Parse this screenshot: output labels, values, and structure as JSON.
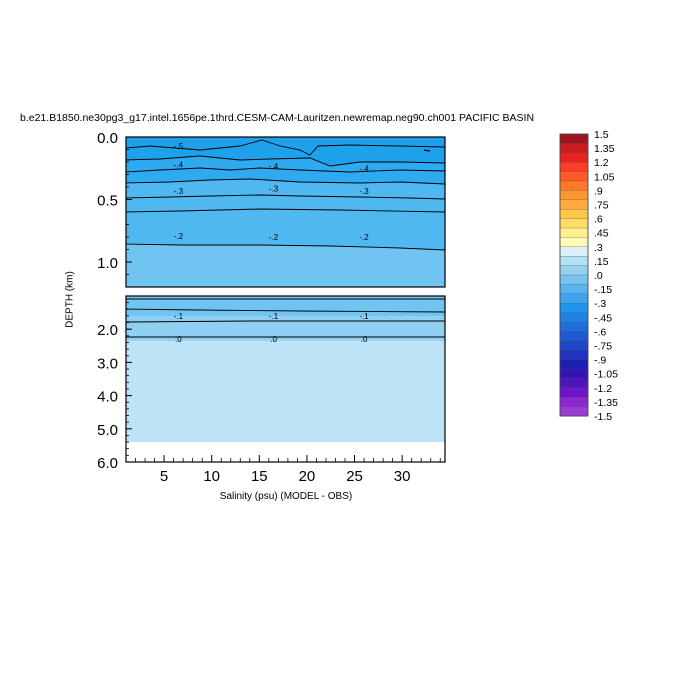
{
  "chart_data": {
    "type": "heatmap",
    "title": "b.e21.B1850.ne30pg3_g17.intel.1656pe.1thrd.CESM-CAM-Lauritzen.newremap.neg90.ch001 PACIFIC BASIN",
    "xlabel": "Salinity (psu) (MODEL - OBS)",
    "ylabel": "DEPTH (km)",
    "x_ticks": [
      "5",
      "10",
      "15",
      "20",
      "25",
      "30"
    ],
    "xlim": [
      1,
      34.5
    ],
    "top_panel": {
      "ylim": [
        0,
        1.2
      ],
      "y_ticks": [
        "0.0",
        "0.5",
        "1.0"
      ],
      "contour_labels": [
        {
          "x": 6.5,
          "y": 0.07,
          "text": "-.5"
        },
        {
          "x": 6.5,
          "y": 0.22,
          "text": "-.4"
        },
        {
          "x": 16.5,
          "y": 0.23,
          "text": "-.4"
        },
        {
          "x": 26.0,
          "y": 0.25,
          "text": "-.4"
        },
        {
          "x": 6.5,
          "y": 0.43,
          "text": "-.3"
        },
        {
          "x": 16.5,
          "y": 0.41,
          "text": "-.3"
        },
        {
          "x": 26.0,
          "y": 0.43,
          "text": "-.3"
        },
        {
          "x": 6.5,
          "y": 0.79,
          "text": "-.2"
        },
        {
          "x": 16.5,
          "y": 0.8,
          "text": "-.2"
        },
        {
          "x": 26.0,
          "y": 0.8,
          "text": "-.2"
        }
      ]
    },
    "bottom_panel": {
      "ylim": [
        1.0,
        6.0
      ],
      "y_ticks": [
        "2.0",
        "3.0",
        "4.0",
        "5.0",
        "6.0"
      ],
      "data_bottom_depth": 5.4,
      "contour_labels": [
        {
          "x": 6.5,
          "y": 1.6,
          "text": "-.1"
        },
        {
          "x": 16.5,
          "y": 1.6,
          "text": "-.1"
        },
        {
          "x": 26.0,
          "y": 1.6,
          "text": "-.1"
        },
        {
          "x": 6.5,
          "y": 2.3,
          "text": ".0"
        },
        {
          "x": 16.5,
          "y": 2.3,
          "text": ".0"
        },
        {
          "x": 26.0,
          "y": 2.3,
          "text": ".0"
        }
      ]
    },
    "colorbar": {
      "labels": [
        "1.5",
        "1.35",
        "1.2",
        "1.05",
        ".9",
        ".75",
        ".6",
        ".45",
        ".3",
        ".15",
        ".0",
        "-.15",
        "-.3",
        "-.45",
        "-.6",
        "-.75",
        "-.9",
        "-1.05",
        "-1.2",
        "-1.35",
        "-1.5"
      ],
      "colors": [
        "#a0141e",
        "#c81e1e",
        "#e62323",
        "#ff3c28",
        "#ff5a28",
        "#ff7828",
        "#ff9632",
        "#ffaa3c",
        "#ffc846",
        "#ffdc64",
        "#fff08c",
        "#fffab4",
        "#dcf0fa",
        "#b4e1f5",
        "#96d2f0",
        "#78c3f0",
        "#5ab4f0",
        "#3ca5f0",
        "#1e96f0",
        "#1e82e6",
        "#1e6edc",
        "#1e5ad2",
        "#1e46c8",
        "#1e32be",
        "#1e1eb4",
        "#3214b4",
        "#5014be",
        "#6e14c8",
        "#8c28d2",
        "#9b3cd7"
      ]
    },
    "fill_colors": {
      "m5": "#1ea0ea",
      "m4": "#2eaaf0",
      "m3": "#50b8f0",
      "m2": "#70c4f2",
      "m1": "#90d0f2",
      "z0": "#b4e0f4",
      "p0": "#bde4f6"
    }
  }
}
